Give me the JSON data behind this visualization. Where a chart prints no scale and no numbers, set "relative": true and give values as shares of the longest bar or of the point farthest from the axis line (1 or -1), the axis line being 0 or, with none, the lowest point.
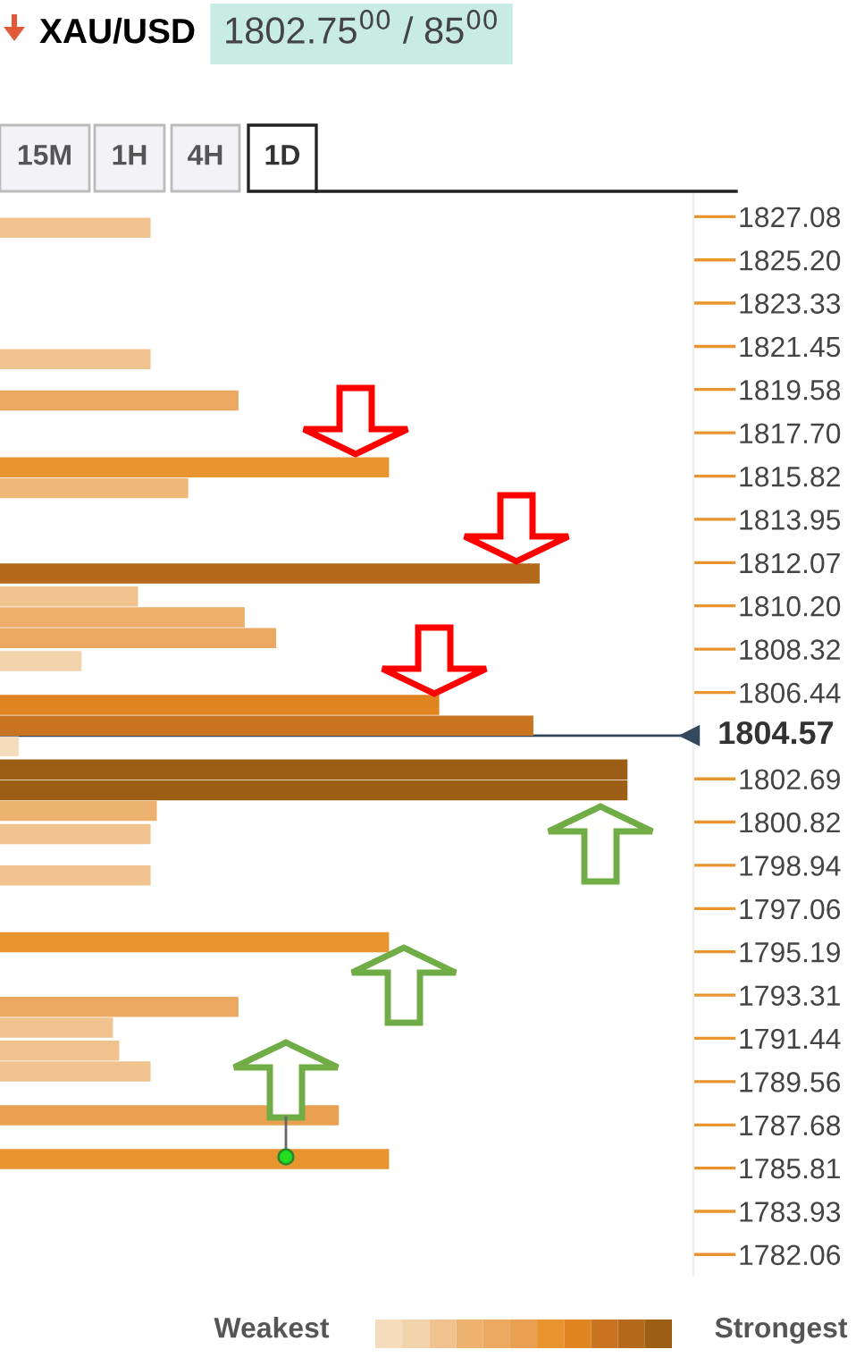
{
  "chart_data": {
    "type": "bar",
    "orientation": "horizontal",
    "relative": true,
    "title": "XAU/USD",
    "subtitle": "1802.75$^{00}$ / 85$^{00}$",
    "x": [
      1826.6,
      1820.9,
      1819.1,
      1816.2,
      1815.3,
      1811.6,
      1810.6,
      1809.7,
      1808.8,
      1807.8,
      1805.9,
      1805.0,
      1804.1,
      1803.1,
      1802.2,
      1801.3,
      1800.3,
      1798.5,
      1795.6,
      1792.8,
      1791.9,
      1790.9,
      1790.0,
      1788.1,
      1786.2
    ],
    "values": [
      0.24,
      0.24,
      0.38,
      0.62,
      0.3,
      0.86,
      0.22,
      0.39,
      0.44,
      0.13,
      0.7,
      0.85,
      0.03,
      1,
      1,
      0.25,
      0.24,
      0.24,
      0.62,
      0.38,
      0.18,
      0.19,
      0.24,
      0.54,
      0.62
    ],
    "colors": [
      "#f0c38e",
      "#f0c38e",
      "#eba860",
      "#e8952f",
      "#efb778",
      "#b5691a",
      "#f0c38e",
      "#edae6a",
      "#eba860",
      "#f3d3ac",
      "#e08420",
      "#c87420",
      "#f5dcbd",
      "#9c5e14",
      "#9c5e14",
      "#eeb270",
      "#f0c38e",
      "#f0c38e",
      "#e8952f",
      "#eba860",
      "#f0c38e",
      "#f0c38e",
      "#f0c38e",
      "#e9a050",
      "#e8952f"
    ],
    "ylim": [
      1781.1,
      1828.1
    ],
    "yticks": [
      {
        "value": 1827.08,
        "label": "1827.08"
      },
      {
        "value": 1825.2,
        "label": "1825.20"
      },
      {
        "value": 1823.33,
        "label": "1823.33"
      },
      {
        "value": 1821.45,
        "label": "1821.45"
      },
      {
        "value": 1819.58,
        "label": "1819.58"
      },
      {
        "value": 1817.7,
        "label": "1817.70"
      },
      {
        "value": 1815.82,
        "label": "1815.82"
      },
      {
        "value": 1813.95,
        "label": "1813.95"
      },
      {
        "value": 1812.07,
        "label": "1812.07"
      },
      {
        "value": 1810.2,
        "label": "1810.20"
      },
      {
        "value": 1808.32,
        "label": "1808.32"
      },
      {
        "value": 1806.44,
        "label": "1806.44"
      },
      {
        "value": 1802.69,
        "label": "1802.69"
      },
      {
        "value": 1800.82,
        "label": "1800.82"
      },
      {
        "value": 1798.94,
        "label": "1798.94"
      },
      {
        "value": 1797.06,
        "label": "1797.06"
      },
      {
        "value": 1795.19,
        "label": "1795.19"
      },
      {
        "value": 1793.31,
        "label": "1793.31"
      },
      {
        "value": 1791.44,
        "label": "1791.44"
      },
      {
        "value": 1789.56,
        "label": "1789.56"
      },
      {
        "value": 1787.68,
        "label": "1787.68"
      },
      {
        "value": 1785.81,
        "label": "1785.81"
      },
      {
        "value": 1783.93,
        "label": "1783.93"
      },
      {
        "value": 1782.06,
        "label": "1782.06"
      }
    ],
    "ref_lines": [
      {
        "axis": "y",
        "value": 1804.57,
        "label": "1804.57",
        "color": "#34495e"
      }
    ],
    "annotations": [
      "15M",
      "1H",
      "4H",
      "1D",
      "Weakest",
      "Strongest"
    ],
    "grid": false
  }
}
